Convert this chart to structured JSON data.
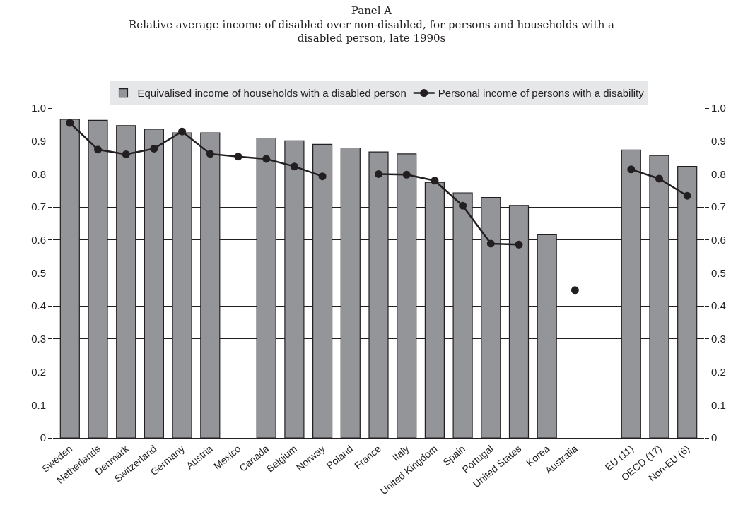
{
  "chart_data": {
    "type": "bar",
    "title": "Panel A",
    "subtitle": "Relative average income of disabled over non-disabled, for persons and households with a disabled person, late 1990s",
    "categories": [
      "Sweden",
      "Netherlands",
      "Denmark",
      "Switzerland",
      "Germany",
      "Austria",
      "Mexico",
      "Canada",
      "Belgium",
      "Norway",
      "Poland",
      "France",
      "Italy",
      "United Kingdom",
      "Spain",
      "Portugal",
      "United States",
      "Korea",
      "Australia",
      null,
      "EU (11)",
      "OECD (17)",
      "Non-EU (6)"
    ],
    "series": [
      {
        "name": "Equivalised income of households with a disabled person",
        "color": "#939598",
        "values": [
          0.966,
          0.963,
          0.947,
          0.936,
          0.925,
          0.925,
          null,
          0.909,
          0.901,
          0.89,
          0.879,
          0.867,
          0.861,
          0.775,
          0.743,
          0.729,
          0.705,
          0.616,
          null,
          null,
          0.873,
          0.856,
          0.823
        ]
      },
      {
        "name": "Personal income of persons with a disability",
        "type": "line",
        "color": "#231f20",
        "marker": "circle",
        "values": [
          0.955,
          0.874,
          0.86,
          0.877,
          0.929,
          0.861,
          0.853,
          0.846,
          0.823,
          0.793,
          null,
          0.8,
          0.798,
          0.78,
          0.704,
          0.589,
          0.586,
          null,
          0.448,
          null,
          0.814,
          0.786,
          0.734
        ]
      }
    ],
    "ylim": [
      0,
      1
    ],
    "yticks": [
      0,
      0.1,
      0.2,
      0.3,
      0.4,
      0.5,
      0.6,
      0.7,
      0.8,
      0.9,
      {
        "value": 1,
        "label": "1.0"
      }
    ],
    "y2lim": [
      0,
      1
    ],
    "y2ticks": [
      0,
      0.1,
      0.2,
      0.3,
      0.4,
      0.5,
      0.6,
      0.7,
      0.8,
      0.9,
      {
        "value": 1,
        "label": "1.0"
      }
    ],
    "grid": "y",
    "legend": "top"
  }
}
